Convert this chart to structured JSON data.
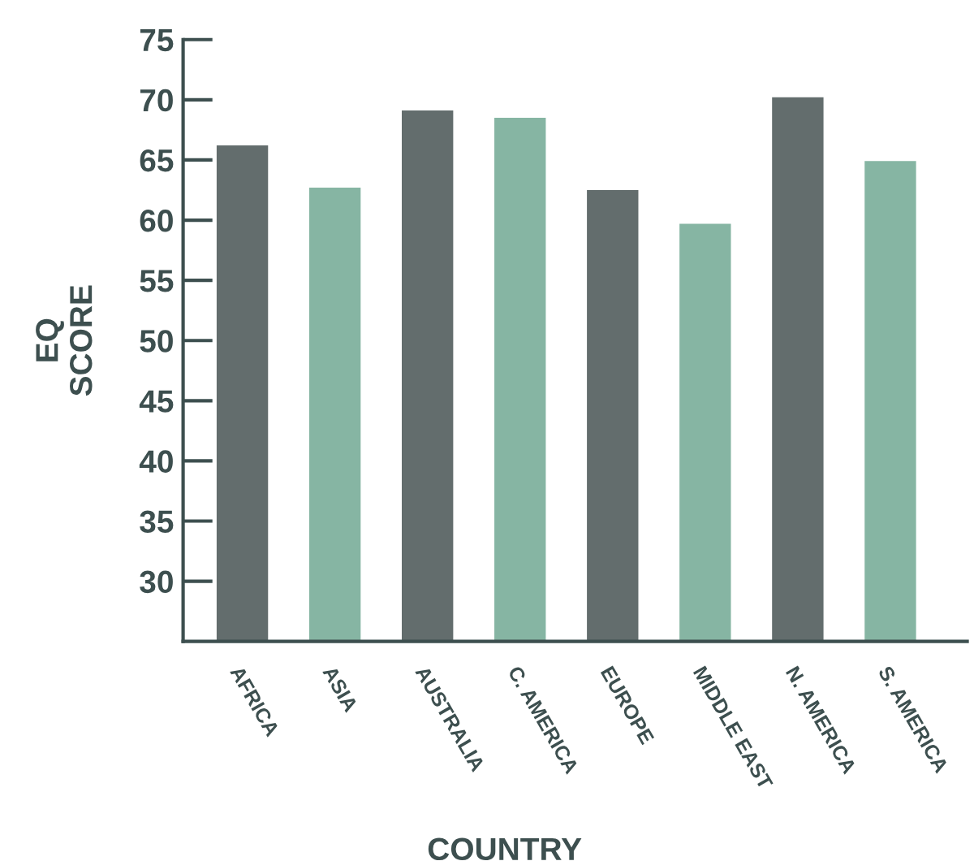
{
  "chart_data": {
    "type": "bar",
    "xlabel": "COUNTRY",
    "ylabel": "EQ\nSCORE",
    "categories": [
      "AFRICA",
      "ASIA",
      "AUSTRALIA",
      "C. AMERICA",
      "EUROPE",
      "MIDDLE EAST",
      "N. AMERICA",
      "S. AMERICA"
    ],
    "values": [
      66.3,
      62.8,
      69.2,
      68.6,
      62.6,
      59.8,
      70.3,
      65.0
    ],
    "colors": [
      "#636d6d",
      "#86b5a3",
      "#636d6d",
      "#86b5a3",
      "#636d6d",
      "#86b5a3",
      "#636d6d",
      "#86b5a3"
    ],
    "ylim": [
      25,
      75
    ],
    "yticks": [
      30,
      35,
      40,
      45,
      50,
      55,
      60,
      65,
      70,
      75
    ],
    "grid": false,
    "legend": false
  }
}
